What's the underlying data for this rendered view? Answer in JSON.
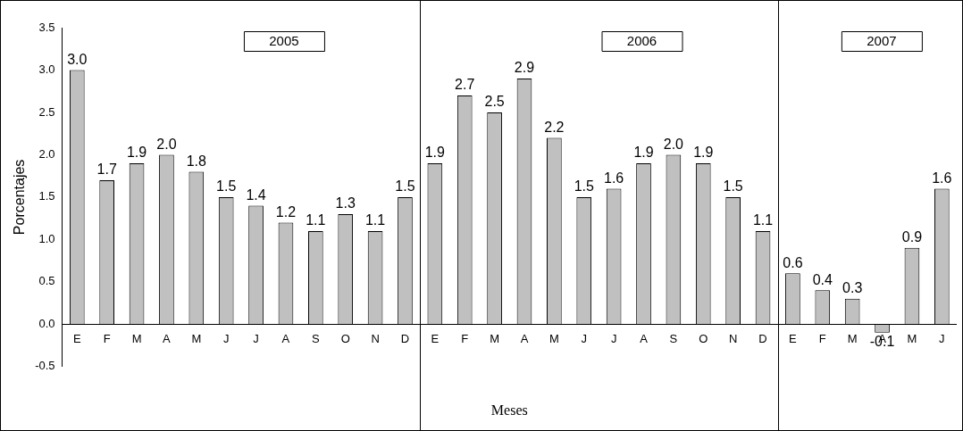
{
  "chart_data": {
    "type": "bar",
    "xlabel": "Meses",
    "ylabel": "Porcentajes",
    "categories": [
      "E",
      "F",
      "M",
      "A",
      "M",
      "J",
      "J",
      "A",
      "S",
      "O",
      "N",
      "D",
      "E",
      "F",
      "M",
      "A",
      "M",
      "J",
      "J",
      "A",
      "S",
      "O",
      "N",
      "D",
      "E",
      "F",
      "M",
      "A",
      "M",
      "J"
    ],
    "values": [
      3.0,
      1.7,
      1.9,
      2.0,
      1.8,
      1.5,
      1.4,
      1.2,
      1.1,
      1.3,
      1.1,
      1.5,
      1.9,
      2.7,
      2.5,
      2.9,
      2.2,
      1.5,
      1.6,
      1.9,
      2.0,
      1.9,
      1.5,
      1.1,
      0.6,
      0.4,
      0.3,
      -0.1,
      0.9,
      1.6
    ],
    "color": "#c0c0c0",
    "ylim": [
      -0.5,
      3.5
    ],
    "yticks": [
      {
        "value": -0.5,
        "label": "-0.5"
      },
      {
        "value": 0,
        "label": "0.0"
      },
      {
        "value": 0.5,
        "label": "0.5"
      },
      {
        "value": 1,
        "label": "1.0"
      },
      {
        "value": 1.5,
        "label": "1.5"
      },
      {
        "value": 2,
        "label": "2.0"
      },
      {
        "value": 2.5,
        "label": "2.5"
      },
      {
        "value": 3,
        "label": "3.0"
      },
      {
        "value": 3.5,
        "label": "3.5"
      }
    ],
    "value_labels": [
      "3.0",
      "1.7",
      "1.9",
      "2.0",
      "1.8",
      "1.5",
      "1.4",
      "1.2",
      "1.1",
      "1.3",
      "1.1",
      "1.5",
      "1.9",
      "2.7",
      "2.5",
      "2.9",
      "2.2",
      "1.5",
      "1.6",
      "1.9",
      "2.0",
      "1.9",
      "1.5",
      "1.1",
      "0.6",
      "0.4",
      "0.3",
      "-0.1",
      "0.9",
      "1.6"
    ],
    "annotations": [
      "2005",
      "2006",
      "2007"
    ],
    "grid": false,
    "legend": false
  }
}
